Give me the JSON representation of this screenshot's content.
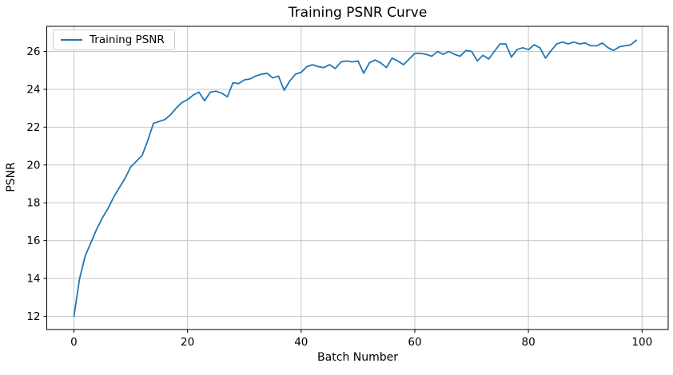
{
  "figure": {
    "title": "Training PSNR Curve",
    "xlabel": "Batch Number",
    "ylabel": "PSNR",
    "legend_label": "Training PSNR"
  },
  "colors": {
    "line": "#1f77b4",
    "grid": "#c6c6c6",
    "spine": "#000000",
    "tick_label": "#000000",
    "background": "#ffffff"
  },
  "chart_data": {
    "type": "line",
    "title": "Training PSNR Curve",
    "xlabel": "Batch Number",
    "ylabel": "PSNR",
    "grid": true,
    "legend_position": "upper left",
    "legend_entries": [
      "Training PSNR"
    ],
    "xlim": [
      -4.78,
      104.6
    ],
    "ylim": [
      11.3,
      27.33
    ],
    "xticks": [
      0,
      20,
      40,
      60,
      80,
      100
    ],
    "yticks": [
      12,
      14,
      16,
      18,
      20,
      22,
      24,
      26
    ],
    "series": [
      {
        "name": "Training PSNR",
        "color": "#1f77b4",
        "x": [
          0,
          1,
          2,
          3,
          4,
          5,
          6,
          7,
          8,
          9,
          10,
          11,
          12,
          13,
          14,
          15,
          16,
          17,
          18,
          19,
          20,
          21,
          22,
          23,
          24,
          25,
          26,
          27,
          28,
          29,
          30,
          31,
          32,
          33,
          34,
          35,
          36,
          37,
          38,
          39,
          40,
          41,
          42,
          43,
          44,
          45,
          46,
          47,
          48,
          49,
          50,
          51,
          52,
          53,
          54,
          55,
          56,
          57,
          58,
          59,
          60,
          61,
          62,
          63,
          64,
          65,
          66,
          67,
          68,
          69,
          70,
          71,
          72,
          73,
          74,
          75,
          76,
          77,
          78,
          79,
          80,
          81,
          82,
          83,
          84,
          85,
          86,
          87,
          88,
          89,
          90,
          91,
          92,
          93,
          94,
          95,
          96,
          97,
          98,
          99
        ],
        "y": [
          12.0,
          14.0,
          15.2,
          15.9,
          16.6,
          17.2,
          17.7,
          18.3,
          18.8,
          19.3,
          19.9,
          20.2,
          20.5,
          21.3,
          22.2,
          22.3,
          22.4,
          22.65,
          23.0,
          23.3,
          23.45,
          23.7,
          23.85,
          23.4,
          23.85,
          23.9,
          23.8,
          23.6,
          24.35,
          24.3,
          24.5,
          24.55,
          24.7,
          24.8,
          24.85,
          24.6,
          24.7,
          23.95,
          24.45,
          24.8,
          24.9,
          25.2,
          25.3,
          25.2,
          25.15,
          25.3,
          25.1,
          25.45,
          25.5,
          25.45,
          25.5,
          24.85,
          25.4,
          25.55,
          25.4,
          25.15,
          25.65,
          25.5,
          25.3,
          25.6,
          25.9,
          25.9,
          25.85,
          25.75,
          26.0,
          25.85,
          26.0,
          25.85,
          25.75,
          26.05,
          26.0,
          25.5,
          25.8,
          25.6,
          26.0,
          26.4,
          26.4,
          25.7,
          26.1,
          26.2,
          26.1,
          26.35,
          26.2,
          25.65,
          26.05,
          26.4,
          26.5,
          26.4,
          26.5,
          26.4,
          26.45,
          26.3,
          26.3,
          26.45,
          26.2,
          26.05,
          26.25,
          26.3,
          26.35,
          26.6
        ]
      }
    ]
  }
}
